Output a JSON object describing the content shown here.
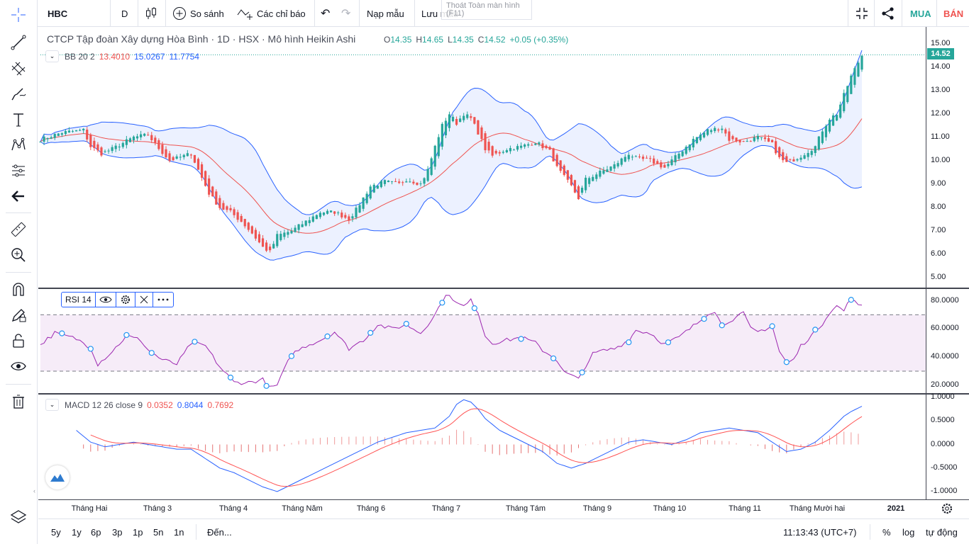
{
  "toolbar": {
    "symbol": "HBC",
    "interval": "D",
    "compare_label": "So sánh",
    "indicators_label": "Các chỉ báo",
    "load_layout_label": "Nạp mẫu",
    "save_layout_label": "Lưu mẫu",
    "fullscreen_tooltip": "Thoát Toàn màn hình (F11)",
    "buy_label": "MUA",
    "sell_label": "BÁN"
  },
  "main_pane": {
    "title": "CTCP Tập đoàn Xây dựng Hòa Bình · 1D · HSX · Mô hình Heikin Ashi",
    "ohlc": {
      "o_key": "O",
      "o_val": "14.35",
      "h_key": "H",
      "h_val": "14.65",
      "l_key": "L",
      "l_val": "14.35",
      "c_key": "C",
      "c_val": "14.52",
      "change": "+0.05 (+0.35%)"
    },
    "bb_legend": {
      "name": "BB 20 2",
      "basis": "13.4010",
      "upper": "15.0267",
      "lower": "11.7754"
    },
    "price_badge": "14.52",
    "price_scale": [
      "15.00",
      "14.00",
      "13.00",
      "12.00",
      "11.00",
      "10.00",
      "9.00",
      "8.00",
      "7.00",
      "6.00",
      "5.00"
    ]
  },
  "rsi_pane": {
    "name": "RSI 14",
    "scale": [
      "80.0000",
      "60.0000",
      "40.0000",
      "20.0000"
    ]
  },
  "macd_pane": {
    "name": "MACD 12 26 close 9",
    "hist": "0.0352",
    "macd": "0.8044",
    "signal": "0.7692",
    "scale": [
      "1.0000",
      "0.5000",
      "0.0000",
      "-0.5000",
      "-1.0000"
    ]
  },
  "time_axis": [
    "Tháng Hai",
    "Tháng 3",
    "Tháng 4",
    "Tháng Năm",
    "Tháng 6",
    "Tháng 7",
    "Tháng Tám",
    "Tháng 9",
    "Tháng 10",
    "Tháng 11",
    "Tháng Mười hai",
    "2021"
  ],
  "bottom_bar": {
    "ranges": [
      "5y",
      "1y",
      "6p",
      "3p",
      "1p",
      "5n",
      "1n"
    ],
    "goto_label": "Đến...",
    "clock": "11:13:43 (UTC+7)",
    "percent_label": "%",
    "log_label": "log",
    "auto_label": "tự động"
  },
  "colors": {
    "up": "#26a69a",
    "down": "#ef5350",
    "bb_band": "#2962ff",
    "bb_basis": "#ef5350",
    "rsi_line": "#9c27b0",
    "macd_line": "#2962ff",
    "signal_line": "#ff5252"
  },
  "icons": [
    "crosshair-icon",
    "trendline-icon",
    "pitchfork-icon",
    "brush-icon",
    "text-icon",
    "pattern-icon",
    "prediction-icon",
    "back-arrow-icon",
    "ruler-icon",
    "zoom-in-icon",
    "magnet-icon",
    "lock-drawing-icon",
    "unlock-icon",
    "eye-icon",
    "trash-icon",
    "layers-icon"
  ]
}
